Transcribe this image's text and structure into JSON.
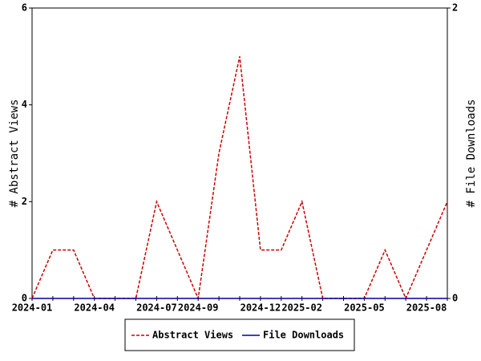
{
  "chart_data": {
    "type": "line",
    "categories": [
      "2024-01",
      null,
      null,
      "2024-04",
      null,
      null,
      "2024-07",
      null,
      "2024-09",
      null,
      null,
      "2024-12",
      null,
      "2025-02",
      null,
      null,
      "2025-05",
      null,
      null,
      "2025-08",
      null
    ],
    "series": [
      {
        "name": "Abstract Views",
        "color": "#cc0000",
        "dashed": true,
        "values": [
          0,
          1,
          1,
          0,
          0,
          0,
          2,
          1,
          0,
          3,
          5,
          1,
          1,
          2,
          0,
          0,
          0,
          1,
          0,
          1,
          2
        ]
      },
      {
        "name": "File Downloads",
        "color": "#000099",
        "dashed": false,
        "axis": "y2",
        "values": [
          0,
          0,
          0,
          0,
          0,
          0,
          0,
          0,
          0,
          0,
          0,
          0,
          0,
          0,
          0,
          0,
          0,
          0,
          0,
          0,
          0
        ]
      }
    ],
    "ylabel": "# Abstract Views",
    "y2label": "# File Downloads",
    "ylim": [
      0,
      6
    ],
    "yticks": [
      0,
      2,
      4,
      6
    ],
    "y2lim": [
      0,
      2
    ],
    "y2ticks": [
      0,
      2
    ]
  }
}
